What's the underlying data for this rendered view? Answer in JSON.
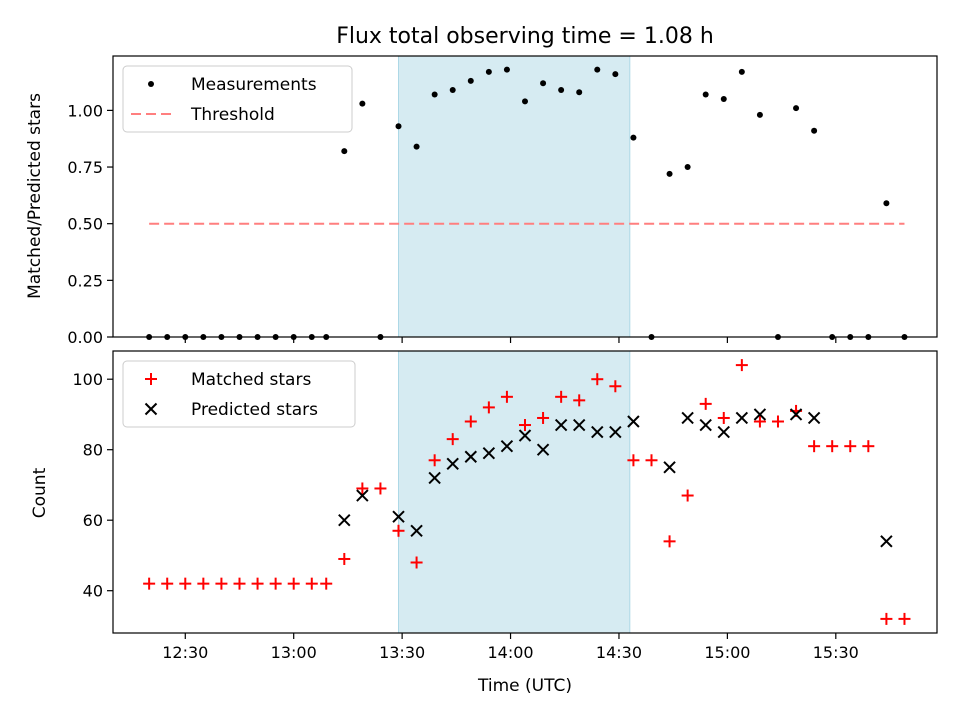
{
  "figure_title": "Flux total observing time = 1.08 h",
  "colors": {
    "highlight": "#add8e6",
    "measurement": "#000000",
    "threshold": "#ff7f7f",
    "matched": "#ff0000",
    "predicted": "#000000"
  },
  "chart_data": [
    {
      "type": "scatter",
      "title": "Flux total observing time = 1.08 h",
      "xlabel": "",
      "ylabel": "Matched/Predicted stars",
      "xlim": [
        "12:10",
        "15:58"
      ],
      "ylim": [
        0,
        1.24
      ],
      "x_tick_labels": [
        "12:30",
        "13:00",
        "13:30",
        "14:00",
        "14:30",
        "15:00",
        "15:30"
      ],
      "y_ticks": [
        "0.00",
        "0.25",
        "0.50",
        "0.75",
        "1.00"
      ],
      "highlight_span": [
        "13:29",
        "14:33"
      ],
      "legend": {
        "position": "upper left",
        "entries": [
          "Measurements",
          "Threshold"
        ]
      },
      "series": [
        {
          "name": "Measurements",
          "marker": "dot",
          "x": [
            "12:20",
            "12:25",
            "12:30",
            "12:35",
            "12:40",
            "12:45",
            "12:50",
            "12:55",
            "13:00",
            "13:05",
            "13:09",
            "13:14",
            "13:19",
            "13:24",
            "13:29",
            "13:34",
            "13:39",
            "13:44",
            "13:49",
            "13:54",
            "13:59",
            "14:04",
            "14:09",
            "14:14",
            "14:19",
            "14:24",
            "14:29",
            "14:34",
            "14:39",
            "14:44",
            "14:49",
            "14:54",
            "14:59",
            "15:04",
            "15:09",
            "15:14",
            "15:19",
            "15:24",
            "15:29",
            "15:34",
            "15:39",
            "15:44",
            "15:49"
          ],
          "values": [
            0,
            0,
            0,
            0,
            0,
            0,
            0,
            0,
            0,
            0,
            0,
            0.82,
            1.03,
            0,
            0.93,
            0.84,
            1.07,
            1.09,
            1.13,
            1.17,
            1.18,
            1.04,
            1.12,
            1.09,
            1.08,
            1.18,
            1.16,
            0.88,
            0,
            0.72,
            0.75,
            1.07,
            1.05,
            1.17,
            0.98,
            0,
            1.01,
            0.91,
            0,
            0,
            0,
            0.59,
            0
          ]
        },
        {
          "name": "Threshold",
          "line": "dashed",
          "x": [
            "12:20",
            "15:49"
          ],
          "values": [
            0.5,
            0.5
          ]
        }
      ]
    },
    {
      "type": "scatter",
      "title": "",
      "xlabel": "Time (UTC)",
      "ylabel": "Count",
      "xlim": [
        "12:10",
        "15:58"
      ],
      "ylim": [
        28,
        108
      ],
      "x_tick_labels": [
        "12:30",
        "13:00",
        "13:30",
        "14:00",
        "14:30",
        "15:00",
        "15:30"
      ],
      "y_ticks": [
        "40",
        "60",
        "80",
        "100"
      ],
      "highlight_span": [
        "13:29",
        "14:33"
      ],
      "legend": {
        "position": "upper left",
        "entries": [
          "Matched stars",
          "Predicted stars"
        ]
      },
      "series": [
        {
          "name": "Matched stars",
          "marker": "plus",
          "x": [
            "12:20",
            "12:25",
            "12:30",
            "12:35",
            "12:40",
            "12:45",
            "12:50",
            "12:55",
            "13:00",
            "13:05",
            "13:09",
            "13:14",
            "13:19",
            "13:24",
            "13:29",
            "13:34",
            "13:39",
            "13:44",
            "13:49",
            "13:54",
            "13:59",
            "14:04",
            "14:09",
            "14:14",
            "14:19",
            "14:24",
            "14:29",
            "14:34",
            "14:39",
            "14:44",
            "14:49",
            "14:54",
            "14:59",
            "15:04",
            "15:09",
            "15:14",
            "15:19",
            "15:24",
            "15:29",
            "15:34",
            "15:39",
            "15:44",
            "15:49"
          ],
          "values": [
            42,
            42,
            42,
            42,
            42,
            42,
            42,
            42,
            42,
            42,
            42,
            49,
            69,
            69,
            57,
            48,
            77,
            83,
            88,
            92,
            95,
            87,
            89,
            95,
            94,
            100,
            98,
            77,
            77,
            54,
            67,
            93,
            89,
            104,
            88,
            88,
            91,
            81,
            81,
            81,
            81,
            32,
            32
          ]
        },
        {
          "name": "Predicted stars",
          "marker": "x",
          "x": [
            "13:14",
            "13:19",
            "13:29",
            "13:34",
            "13:39",
            "13:44",
            "13:49",
            "13:54",
            "13:59",
            "14:04",
            "14:09",
            "14:14",
            "14:19",
            "14:24",
            "14:29",
            "14:34",
            "14:44",
            "14:49",
            "14:54",
            "14:59",
            "15:04",
            "15:09",
            "15:19",
            "15:24",
            "15:44"
          ],
          "values": [
            60,
            67,
            61,
            57,
            72,
            76,
            78,
            79,
            81,
            84,
            80,
            87,
            87,
            85,
            85,
            88,
            75,
            89,
            87,
            85,
            89,
            90,
            90,
            89,
            54
          ]
        }
      ]
    }
  ]
}
